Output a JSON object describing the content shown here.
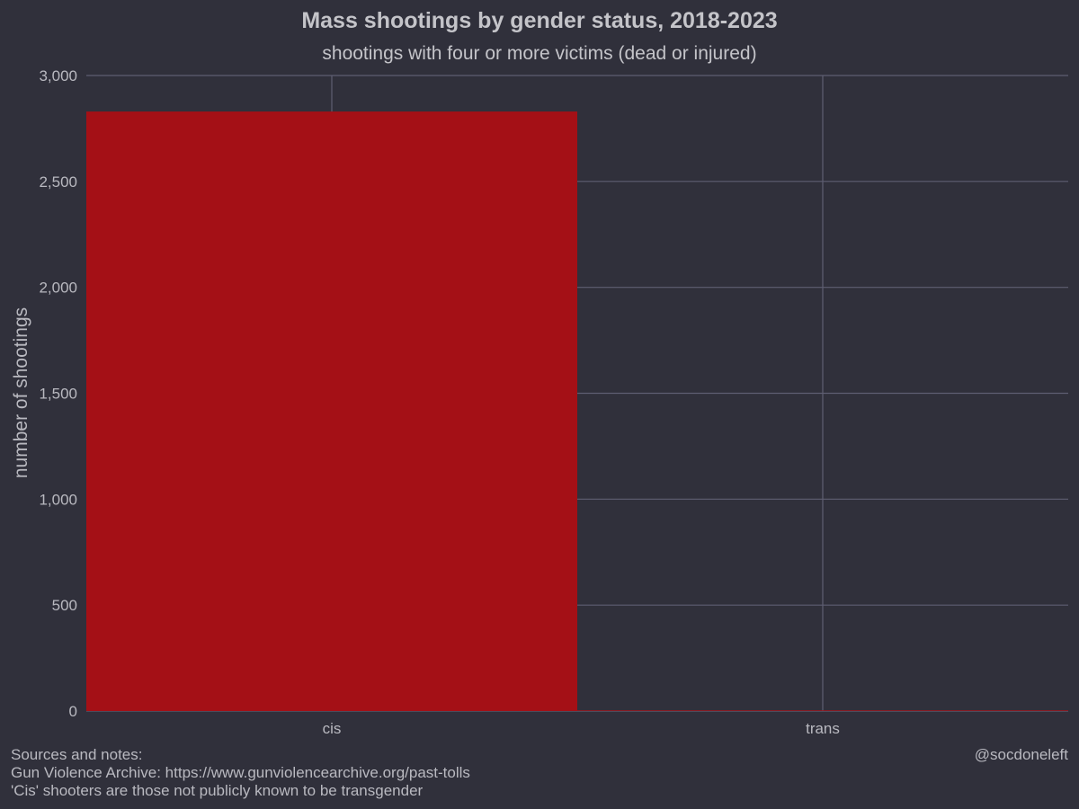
{
  "chart_data": {
    "type": "bar",
    "title": "Mass shootings by gender status, 2018-2023",
    "subtitle": "shootings with four or more victims (dead or injured)",
    "categories": [
      "cis",
      "trans"
    ],
    "values": [
      2830,
      3
    ],
    "xlabel": "",
    "ylabel": "number of shootings",
    "ylim": [
      0,
      3000
    ],
    "yticks": [
      0,
      500,
      1000,
      1500,
      2000,
      2500,
      3000
    ],
    "ytick_labels": [
      "0",
      "500",
      "1,000",
      "1,500",
      "2,000",
      "2,500",
      "3,000"
    ],
    "grid": true,
    "legend": "none",
    "bar_color": "#a41016",
    "background_color": "#30303b",
    "grid_color": "#5e5e72"
  },
  "footer": {
    "notes_heading": "Sources and notes:",
    "source_line": "Gun Violence Archive: https://www.gunviolencearchive.org/past-tolls",
    "note_line": "'Cis' shooters are those not publicly known to be transgender",
    "credit": "@socdoneleft"
  }
}
